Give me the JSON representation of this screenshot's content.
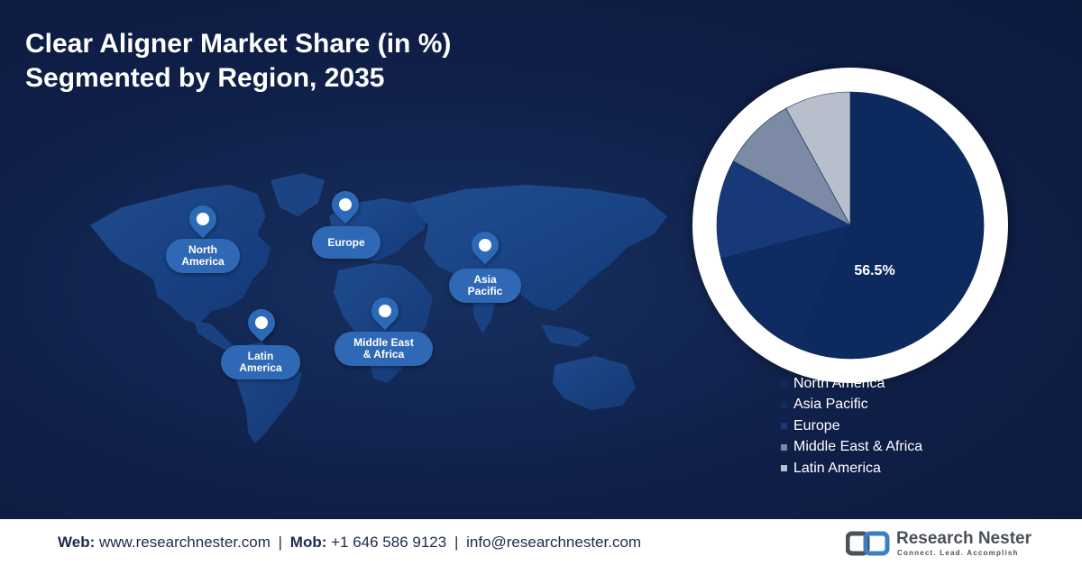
{
  "title": {
    "line1": "Clear Aligner Market Share (in %)",
    "line2": "Segmented by Region, 2035"
  },
  "map": {
    "markers": [
      {
        "name": "north-america",
        "label": "North\nAmerica"
      },
      {
        "name": "europe",
        "label": "Europe"
      },
      {
        "name": "asia-pacific",
        "label": "Asia\nPacific"
      },
      {
        "name": "latin-america",
        "label": "Latin\nAmerica"
      },
      {
        "name": "middle-east-africa",
        "label": "Middle East\n& Africa"
      }
    ],
    "marker_icon": "location-pin-icon"
  },
  "chart_data": {
    "type": "pie",
    "title": "Clear Aligner Market Share (in %) Segmented by Region, 2035",
    "slices": [
      {
        "name": "North America",
        "value": 56.5,
        "color": "#0d2a5e",
        "label": "56.5%"
      },
      {
        "name": "Asia Pacific",
        "value": 14.5,
        "color": "#0e2c61",
        "label": ""
      },
      {
        "name": "Europe",
        "value": 12.0,
        "color": "#17397a",
        "label": ""
      },
      {
        "name": "Middle East & Africa",
        "value": 9.0,
        "color": "#7c8aa6",
        "label": ""
      },
      {
        "name": "Latin America",
        "value": 8.0,
        "color": "#b7bfcd",
        "label": ""
      }
    ],
    "legend_placement": "bottom-right"
  },
  "legend": {
    "items": [
      {
        "label": "North America",
        "color": "#0d2a5e"
      },
      {
        "label": "Asia Pacific",
        "color": "#0e2c61"
      },
      {
        "label": "Europe",
        "color": "#17397a"
      },
      {
        "label": "Middle East & Africa",
        "color": "#7c8aa6"
      },
      {
        "label": "Latin America",
        "color": "#b7bfcd"
      }
    ]
  },
  "footer": {
    "web_label": "Web:",
    "web_value": "www.researchnester.com",
    "mob_label": "Mob:",
    "mob_value": "+1 646 586 9123",
    "email": "info@researchnester.com",
    "separator": "|",
    "logo_name": "Research Nester",
    "logo_tagline": "Connect. Lead. Accomplish",
    "logo_icon": "research-nester-logo-icon"
  }
}
